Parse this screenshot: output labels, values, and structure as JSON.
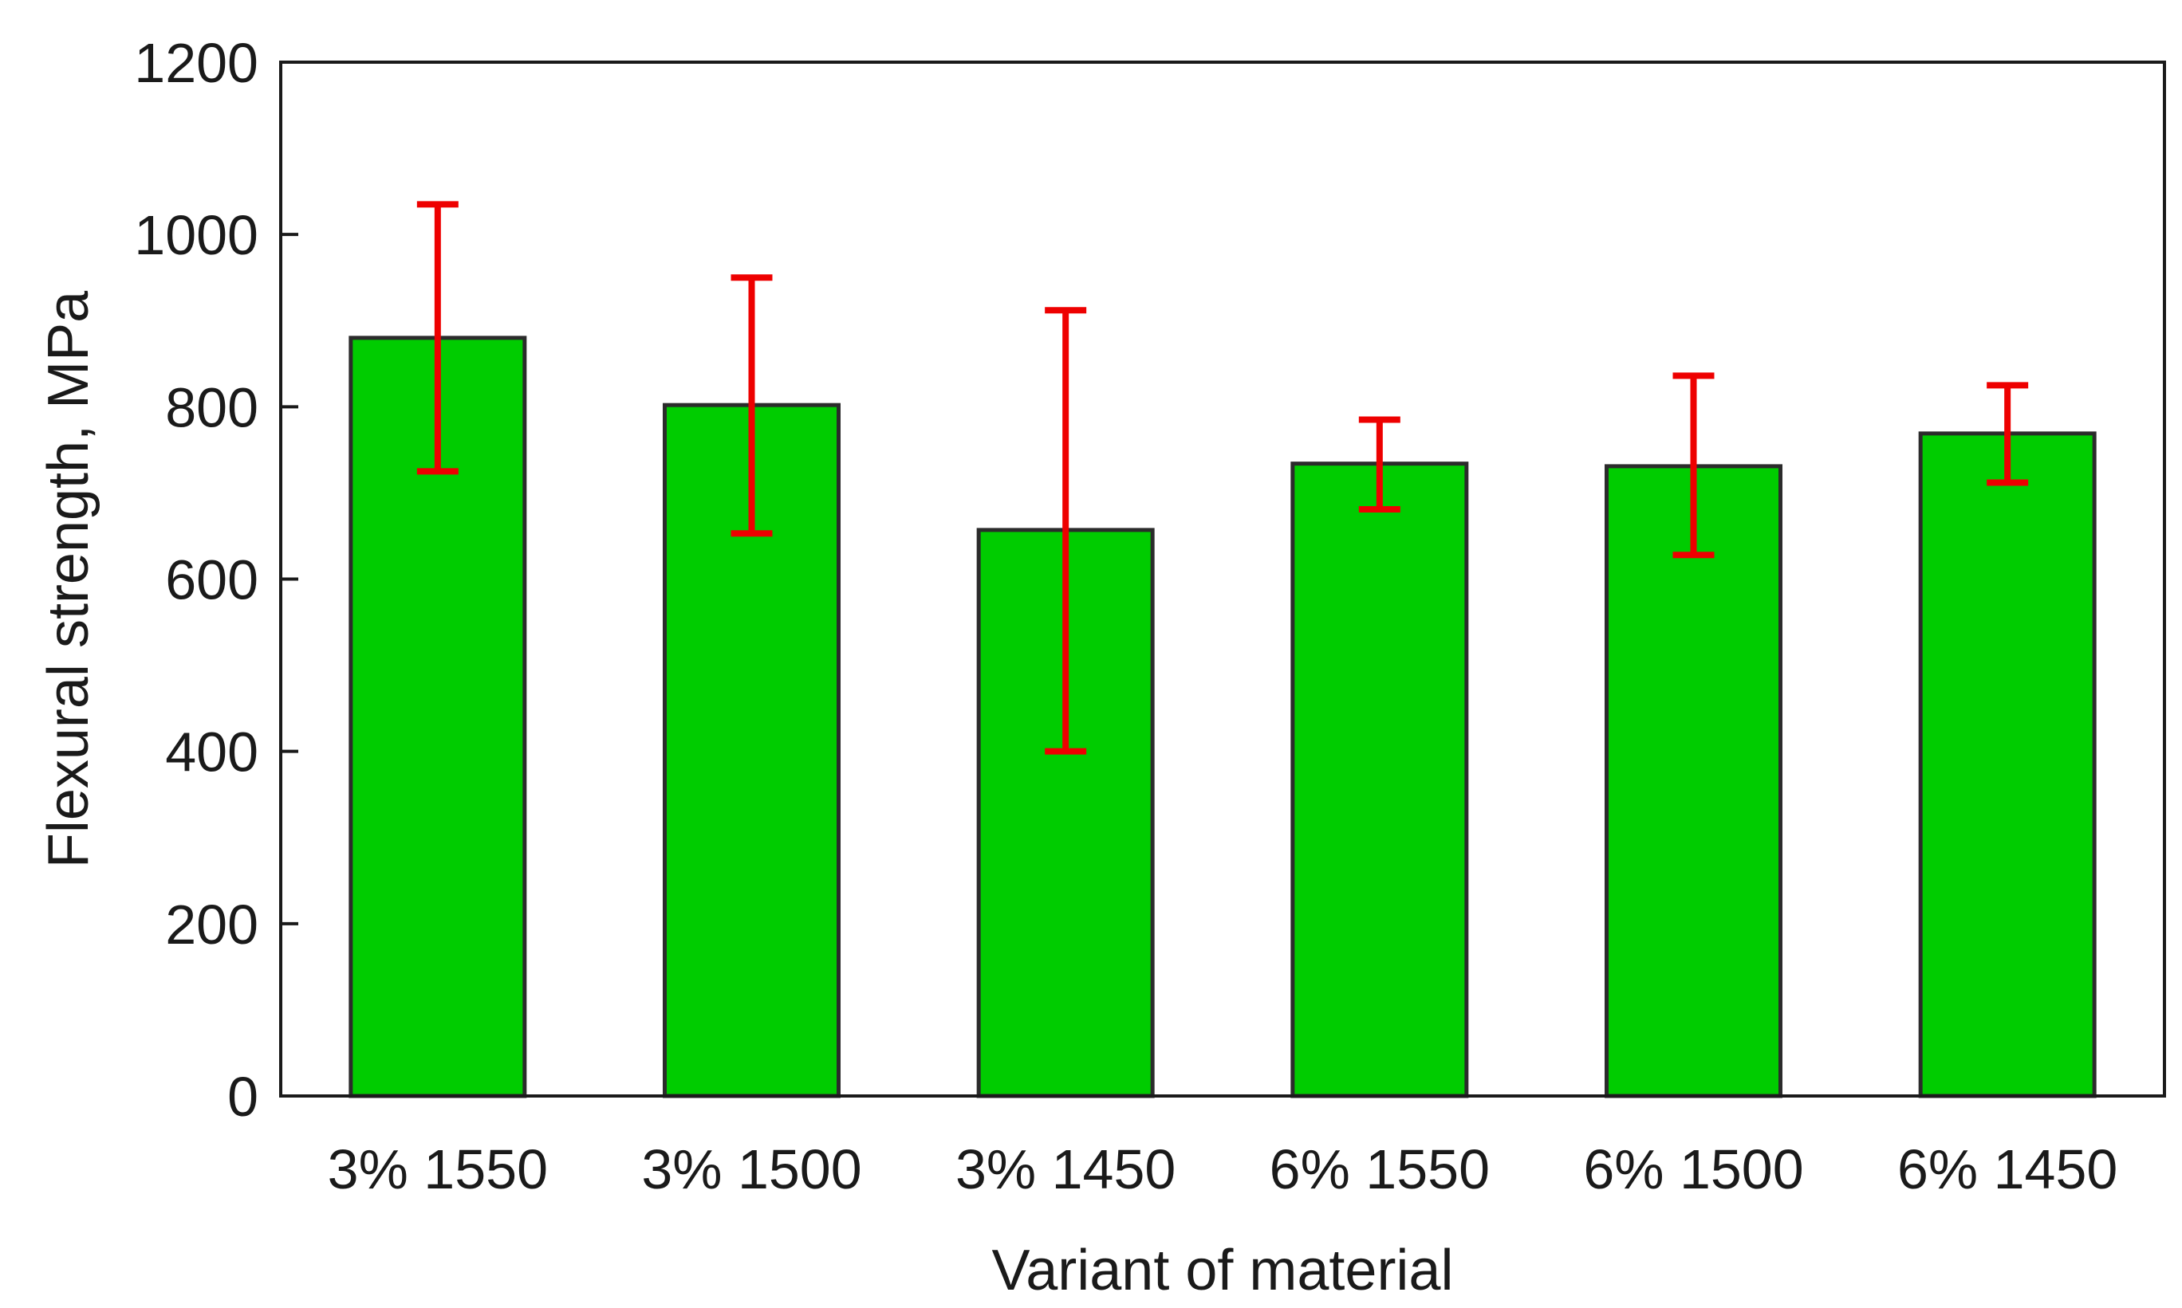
{
  "chart_data": {
    "type": "bar",
    "title": "",
    "xlabel": "Variant of material",
    "ylabel": "Flexural strength, MPa",
    "ylim": [
      0,
      1200
    ],
    "yticks": [
      0,
      200,
      400,
      600,
      800,
      1000,
      1200
    ],
    "grid": false,
    "legend": "none",
    "categories": [
      "3% 1550",
      "3% 1500",
      "3% 1450",
      "6% 1550",
      "6% 1500",
      "6% 1450"
    ],
    "values": [
      880,
      802,
      657,
      734,
      731,
      769
    ],
    "error_low": [
      725,
      653,
      400,
      681,
      628,
      712
    ],
    "error_high": [
      1035,
      950,
      912,
      785,
      836,
      825
    ],
    "colors": {
      "bar_fill": "#00cc00",
      "bar_edge": "#2b2b2b",
      "error_bar": "#ee0000",
      "axis": "#1a1a1a"
    }
  }
}
